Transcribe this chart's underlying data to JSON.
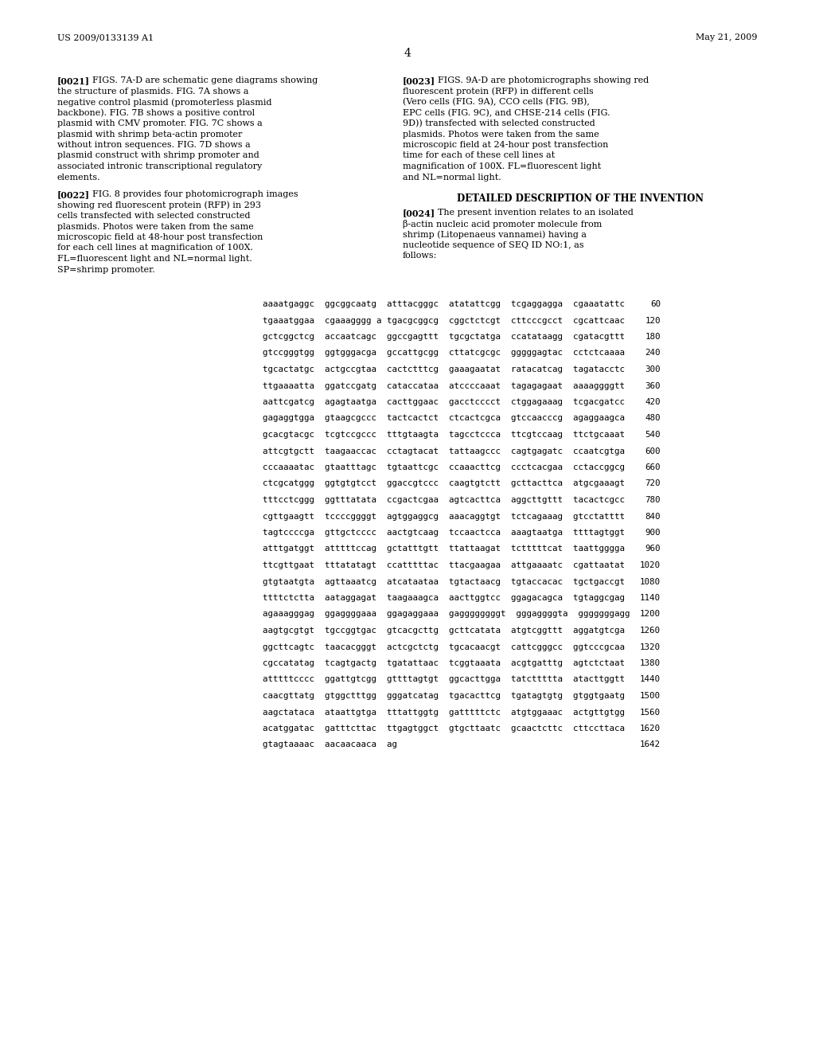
{
  "header_left": "US 2009/0133139 A1",
  "header_right": "May 21, 2009",
  "page_number": "4",
  "background_color": "#ffffff",
  "text_color": "#000000",
  "para1_tag": "[0021]",
  "para1_text": "FIGS. 7A-D are schematic gene diagrams showing the structure of plasmids. FIG. 7A shows a negative control plasmid (promoterless plasmid backbone). FIG. 7B shows a positive control plasmid with CMV promoter. FIG. 7C shows a plasmid with shrimp beta-actin promoter without intron sequences. FIG. 7D shows a plasmid construct with shrimp promoter and associated intronic transcriptional regulatory elements.",
  "para2_tag": "[0022]",
  "para2_text": "FIG. 8 provides four photomicrograph images showing red fluorescent protein (RFP) in 293 cells transfected with selected constructed plasmids. Photos were taken from the same microscopic field at 48-hour post transfection for each cell lines at magnification of 100X. FL=fluorescent light and NL=normal light. SP=shrimp promoter.",
  "para3_tag": "[0023]",
  "para3_text": "FIGS. 9A-D are photomicrographs showing red fluorescent protein (RFP) in different cells (Vero cells (FIG. 9A), CCO cells (FIG. 9B), EPC cells (FIG. 9C), and CHSE-214 cells (FIG. 9D)) transfected with selected constructed plasmids. Photos were taken from the same microscopic field at 24-hour post transfection time for each of these cell lines at magnification of 100X. FL=fluorescent light and NL=normal light.",
  "para4_tag": "[0024]",
  "section_title": "DETAILED DESCRIPTION OF THE INVENTION",
  "para4_text": "The present invention relates to an isolated β-actin nucleic acid promoter molecule from shrimp (Litopenaeus vannamei) having a nucleotide sequence of SEQ ID NO:1, as follows:",
  "body_fontsize": 8.0,
  "seq_fontsize": 7.8,
  "header_fontsize": 8.0,
  "sequence_lines": [
    {
      "seq": "aaaatgaggc  ggcggcaatg  atttacgggc  atatattcgg  tcgaggagga  cgaaatattc",
      "num": "60"
    },
    {
      "seq": "tgaaatggaa  cgaaagggg a tgacgcggcg  cggctctcgt  cttcccgcct  cgcattcaac",
      "num": "120"
    },
    {
      "seq": "gctcggctcg  accaatcagc  ggccgagttt  tgcgctatga  ccatataagg  cgatacgttt",
      "num": "180"
    },
    {
      "seq": "gtccgggtgg  ggtgggacga  gccattgcgg  cttatcgcgc  gggggagtac  cctctcaaaa",
      "num": "240"
    },
    {
      "seq": "tgcactatgc  actgccgtaa  cactctttcg  gaaagaatat  ratacatcag  tagatacctc",
      "num": "300"
    },
    {
      "seq": "ttgaaaatta  ggatccgatg  cataccataa  atccccaaat  tagagagaat  aaaaggggtt",
      "num": "360"
    },
    {
      "seq": "aattcgatcg  agagtaatga  cacttggaac  gacctcccct  ctggagaaag  tcgacgatcc",
      "num": "420"
    },
    {
      "seq": "gagaggtgga  gtaagcgccc  tactcactct  ctcactcgca  gtccaacccg  agaggaagca",
      "num": "480"
    },
    {
      "seq": "gcacgtacgc  tcgtccgccc  tttgtaagta  tagcctccca  ttcgtccaag  ttctgcaaat",
      "num": "540"
    },
    {
      "seq": "attcgtgctt  taagaaccac  cctagtacat  tattaagccc  cagtgagatc  ccaatcgtga",
      "num": "600"
    },
    {
      "seq": "cccaaaatac  gtaatttagc  tgtaattcgc  ccaaacttcg  ccctcacgaa  cctaccggcg",
      "num": "660"
    },
    {
      "seq": "ctcgcatggg  ggtgtgtcct  ggaccgtccc  caagtgtctt  gcttacttca  atgcgaaagt",
      "num": "720"
    },
    {
      "seq": "tttcctcggg  ggtttatata  ccgactcgaa  agtcacttca  aggcttgttt  tacactcgcc",
      "num": "780"
    },
    {
      "seq": "cgttgaagtt  tccccggggt  agtggaggcg  aaacaggtgt  tctcagaaag  gtcctatttt",
      "num": "840"
    },
    {
      "seq": "tagtccccga  gttgctcccc  aactgtcaag  tccaactcca  aaagtaatga  ttttagtggt",
      "num": "900"
    },
    {
      "seq": "atttgatggt  atttttccag  gctatttgtt  ttattaagat  tctttttcat  taattgggga",
      "num": "960"
    },
    {
      "seq": "ttcgttgaat  tttatatagt  ccatttttac  ttacgaagaa  attgaaaatc  cgattaatat",
      "num": "1020"
    },
    {
      "seq": "gtgtaatgta  agttaaatcg  atcataataa  tgtactaacg  tgtaccacac  tgctgaccgt",
      "num": "1080"
    },
    {
      "seq": "ttttctctta  aataggagat  taagaaagca  aacttggtcc  ggagacagca  tgtaggcgag",
      "num": "1140"
    },
    {
      "seq": "agaaagggag  ggaggggaaa  ggagaggaaa  gaggggggggt  gggaggggta  gggggggagg",
      "num": "1200"
    },
    {
      "seq": "aagtgcgtgt  tgccggtgac  gtcacgcttg  gcttcatata  atgtcggttt  aggatgtcga",
      "num": "1260"
    },
    {
      "seq": "ggcttcagtc  taacacgggt  actcgctctg  tgcacaacgt  cattcgggcc  ggtcccgcaa",
      "num": "1320"
    },
    {
      "seq": "cgccatatag  tcagtgactg  tgatattaac  tcggtaaata  acgtgatttg  agtctctaat",
      "num": "1380"
    },
    {
      "seq": "atttttcccc  ggattgtcgg  gttttagtgt  ggcacttgga  tatcttttta  atacttggtt",
      "num": "1440"
    },
    {
      "seq": "caacgttatg  gtggctttgg  gggatcatag  tgacacttcg  tgatagtgtg  gtggtgaatg",
      "num": "1500"
    },
    {
      "seq": "aagctataca  ataattgtga  tttattggtg  gatttttctc  atgtggaaac  actgttgtgg",
      "num": "1560"
    },
    {
      "seq": "acatggatac  gatttcttac  ttgagtggct  gtgcttaatc  gcaactcttc  cttccttaca",
      "num": "1620"
    },
    {
      "seq": "gtagtaaaac  aacaacaaca  ag",
      "num": "1642"
    }
  ]
}
